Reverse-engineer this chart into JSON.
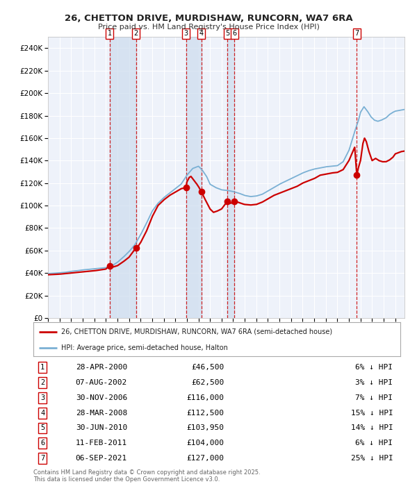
{
  "title_line1": "26, CHETTON DRIVE, MURDISHAW, RUNCORN, WA7 6RA",
  "title_line2": "Price paid vs. HM Land Registry's House Price Index (HPI)",
  "ylim": [
    0,
    250000
  ],
  "yticks": [
    0,
    20000,
    40000,
    60000,
    80000,
    100000,
    120000,
    140000,
    160000,
    180000,
    200000,
    220000,
    240000
  ],
  "ytick_labels": [
    "£0",
    "£20K",
    "£40K",
    "£60K",
    "£80K",
    "£100K",
    "£120K",
    "£140K",
    "£160K",
    "£180K",
    "£200K",
    "£220K",
    "£240K"
  ],
  "background_color": "#ffffff",
  "plot_bg_color": "#eef2fa",
  "grid_color": "#ffffff",
  "hpi_line_color": "#7ab0d4",
  "price_line_color": "#cc0000",
  "sale_marker_color": "#cc0000",
  "vline_color": "#cc0000",
  "shade_color": "#ccdcee",
  "sales": [
    {
      "num": 1,
      "date_x": 2000.32,
      "price": 46500,
      "label": "1",
      "date_str": "28-APR-2000",
      "pct": "6%",
      "direction": "↓"
    },
    {
      "num": 2,
      "date_x": 2002.6,
      "price": 62500,
      "label": "2",
      "date_str": "07-AUG-2002",
      "pct": "3%",
      "direction": "↓"
    },
    {
      "num": 3,
      "date_x": 2006.92,
      "price": 116000,
      "label": "3",
      "date_str": "30-NOV-2006",
      "pct": "7%",
      "direction": "↓"
    },
    {
      "num": 4,
      "date_x": 2008.25,
      "price": 112500,
      "label": "4",
      "date_str": "28-MAR-2008",
      "pct": "15%",
      "direction": "↓"
    },
    {
      "num": 5,
      "date_x": 2010.5,
      "price": 103950,
      "label": "5",
      "date_str": "30-JUN-2010",
      "pct": "14%",
      "direction": "↓"
    },
    {
      "num": 6,
      "date_x": 2011.12,
      "price": 104000,
      "label": "6",
      "date_str": "11-FEB-2011",
      "pct": "6%",
      "direction": "↓"
    },
    {
      "num": 7,
      "date_x": 2021.68,
      "price": 127000,
      "label": "7",
      "date_str": "06-SEP-2021",
      "pct": "25%",
      "direction": "↓"
    }
  ],
  "legend_house_label": "26, CHETTON DRIVE, MURDISHAW, RUNCORN, WA7 6RA (semi-detached house)",
  "legend_hpi_label": "HPI: Average price, semi-detached house, Halton",
  "footnote": "Contains HM Land Registry data © Crown copyright and database right 2025.\nThis data is licensed under the Open Government Licence v3.0.",
  "xmin": 1995.0,
  "xmax": 2025.8
}
